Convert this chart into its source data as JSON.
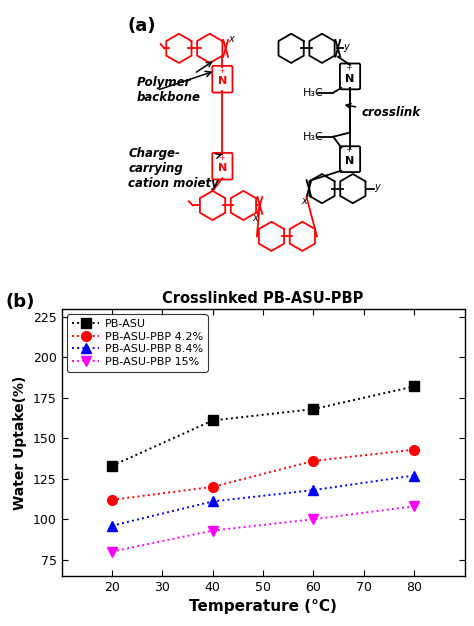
{
  "title_b": "Crosslinked PB-ASU-PBP",
  "xlabel": "Temperature (°C)",
  "ylabel": "Water Uptake(%)",
  "x": [
    20,
    40,
    60,
    80
  ],
  "series": [
    {
      "label": "PB-ASU",
      "y": [
        133,
        161,
        168,
        182
      ],
      "color": "#000000",
      "marker": "s",
      "linestyle": "dotted"
    },
    {
      "label": "PB-ASU-PBP 4.2%",
      "y": [
        112,
        120,
        136,
        143
      ],
      "color": "#ff0000",
      "marker": "o",
      "linestyle": "dotted"
    },
    {
      "label": "PB-ASU-PBP 8.4%",
      "y": [
        96,
        111,
        118,
        127
      ],
      "color": "#0000ff",
      "marker": "^",
      "linestyle": "dotted"
    },
    {
      "label": "PB-ASU-PBP 15%",
      "y": [
        80,
        93,
        100,
        108
      ],
      "color": "#ff00ff",
      "marker": "v",
      "linestyle": "dotted"
    }
  ],
  "xlim": [
    10,
    90
  ],
  "ylim": [
    65,
    230
  ],
  "xticks": [
    20,
    30,
    40,
    50,
    60,
    70,
    80
  ],
  "yticks": [
    75,
    100,
    125,
    150,
    175,
    200,
    225
  ],
  "label_a": "(a)",
  "label_b": "(b)"
}
